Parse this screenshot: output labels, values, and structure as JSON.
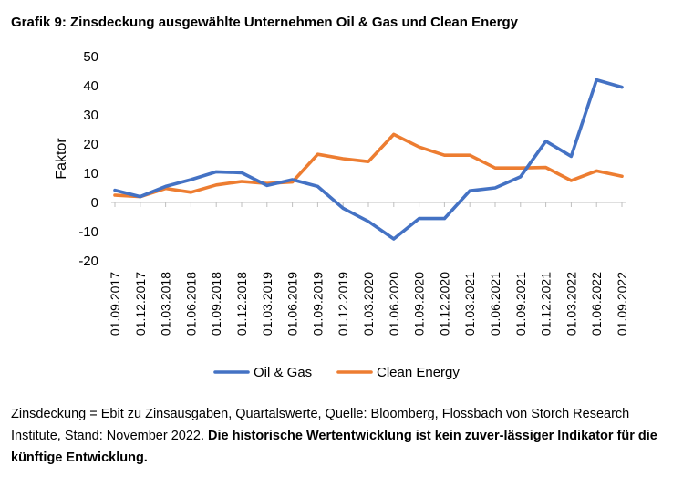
{
  "title": "Grafik 9: Zinsdeckung ausgewählte Unternehmen Oil & Gas und Clean Energy",
  "footnote": {
    "text": "Zinsdeckung = Ebit zu Zinsausgaben, Quartalswerte, Quelle: Bloomberg, Flossbach von Storch Research Institute, Stand: November 2022. ",
    "bold": "Die historische Wertentwicklung ist kein zuver-lässiger Indikator für die künftige Entwicklung."
  },
  "chart_data": {
    "type": "line",
    "ylabel": "Faktor",
    "xlabel": "",
    "ylim": [
      -20,
      50
    ],
    "yticks": [
      -20,
      -10,
      0,
      10,
      20,
      30,
      40,
      50
    ],
    "grid": false,
    "legend_position": "bottom",
    "categories": [
      "01.09.2017",
      "01.12.2017",
      "01.03.2018",
      "01.06.2018",
      "01.09.2018",
      "01.12.2018",
      "01.03.2019",
      "01.06.2019",
      "01.09.2019",
      "01.12.2019",
      "01.03.2020",
      "01.06.2020",
      "01.09.2020",
      "01.12.2020",
      "01.03.2021",
      "01.06.2021",
      "01.09.2021",
      "01.12.2021",
      "01.03.2022",
      "01.06.2022",
      "01.09.2022"
    ],
    "series": [
      {
        "name": "Oil & Gas",
        "color": "#4472C4",
        "values": [
          4.2,
          2.0,
          5.5,
          7.8,
          10.5,
          10.2,
          5.8,
          7.8,
          5.5,
          -2.0,
          -6.5,
          -12.5,
          -5.5,
          -5.5,
          4.0,
          5.0,
          8.8,
          21.0,
          15.8,
          42.0,
          39.5
        ]
      },
      {
        "name": "Clean Energy",
        "color": "#ED7D31",
        "values": [
          2.5,
          2.0,
          4.8,
          3.5,
          6.0,
          7.2,
          6.5,
          7.0,
          16.5,
          15.0,
          14.0,
          23.3,
          19.0,
          16.2,
          16.2,
          11.8,
          11.8,
          12.0,
          7.5,
          10.8,
          9.0
        ]
      }
    ]
  }
}
